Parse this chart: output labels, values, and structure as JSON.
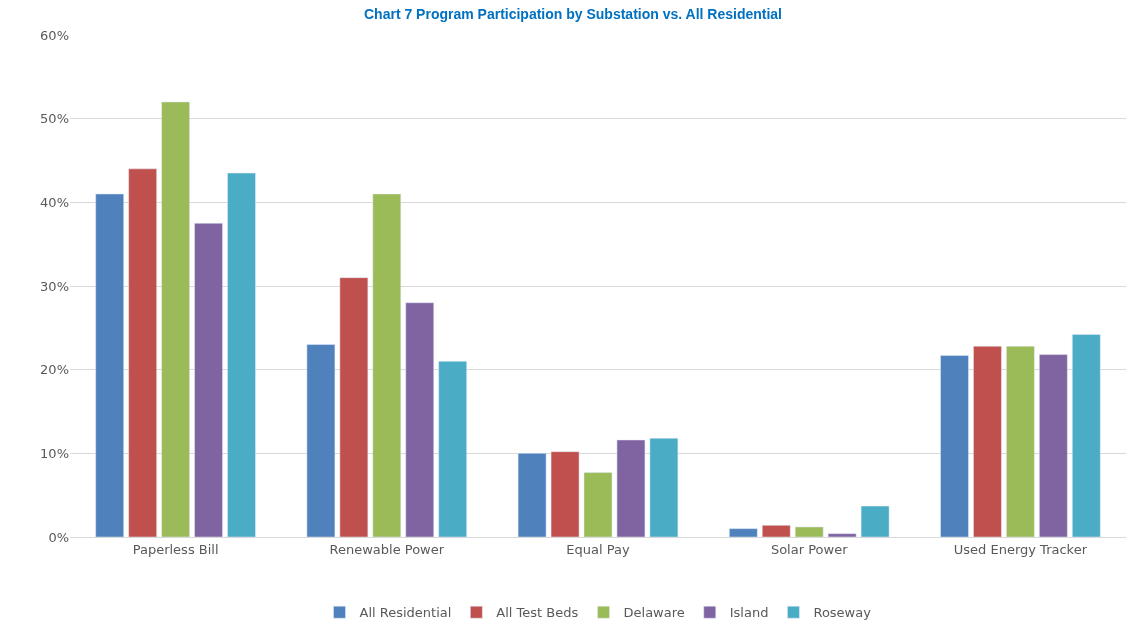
{
  "chart_data": {
    "type": "bar",
    "title": "Chart 7 Program Participation by Substation vs. All Residential",
    "categories": [
      "Paperless Bill",
      "Renewable Power",
      "Equal Pay",
      "Solar Power",
      "Used Energy Tracker"
    ],
    "series": [
      {
        "name": "All Residential",
        "color": "#4f81bd",
        "values": [
          41,
          23,
          10,
          1,
          21.7
        ]
      },
      {
        "name": "All Test Beds",
        "color": "#c0504d",
        "values": [
          44,
          31,
          10.2,
          1.4,
          22.8
        ]
      },
      {
        "name": "Delaware",
        "color": "#9bbb59",
        "values": [
          52,
          41,
          7.7,
          1.2,
          22.8
        ]
      },
      {
        "name": "Island",
        "color": "#8064a2",
        "values": [
          37.5,
          28,
          11.6,
          0.4,
          21.8
        ]
      },
      {
        "name": "Roseway",
        "color": "#4bacc6",
        "values": [
          43.5,
          21,
          11.8,
          3.7,
          24.2
        ]
      }
    ],
    "ylim": [
      0,
      60
    ],
    "yticks": [
      {
        "value": 0,
        "label": "0%"
      },
      {
        "value": 10,
        "label": "10%"
      },
      {
        "value": 20,
        "label": "20%"
      },
      {
        "value": 30,
        "label": "30%"
      },
      {
        "value": 40,
        "label": "40%"
      },
      {
        "value": 50,
        "label": "50%"
      },
      {
        "value": 60,
        "label": "60%"
      }
    ],
    "grid": "y",
    "legend": "bottom"
  }
}
